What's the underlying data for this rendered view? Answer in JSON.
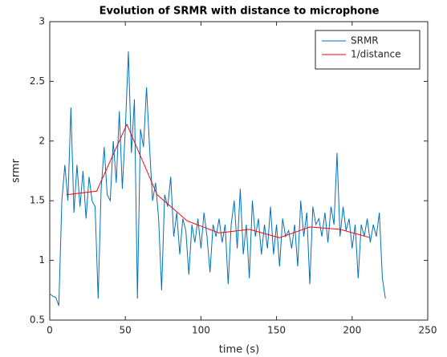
{
  "chart_data": {
    "type": "line",
    "title": "Evolution of SRMR with distance to microphone",
    "xlabel": "time (s)",
    "ylabel": "srmr",
    "xlim": [
      0,
      250
    ],
    "xticks": [
      0,
      50,
      100,
      150,
      200,
      250
    ],
    "ylim": [
      0.5,
      3
    ],
    "yticks": [
      0.5,
      1,
      1.5,
      2,
      2.5,
      3
    ],
    "grid": false,
    "legend": "northeast",
    "series": [
      {
        "name": "SRMR",
        "color": "#0072bd",
        "x": [
          0,
          2,
          4,
          6,
          8,
          10,
          12,
          14,
          16,
          18,
          20,
          22,
          24,
          26,
          28,
          30,
          32,
          34,
          36,
          38,
          40,
          42,
          44,
          46,
          48,
          50,
          52,
          54,
          56,
          58,
          60,
          62,
          64,
          66,
          68,
          70,
          72,
          74,
          76,
          78,
          80,
          82,
          84,
          86,
          88,
          90,
          92,
          94,
          96,
          98,
          100,
          102,
          104,
          106,
          108,
          110,
          112,
          114,
          116,
          118,
          120,
          122,
          124,
          126,
          128,
          130,
          132,
          134,
          136,
          138,
          140,
          142,
          144,
          146,
          148,
          150,
          152,
          154,
          156,
          158,
          160,
          162,
          164,
          166,
          168,
          170,
          172,
          174,
          176,
          178,
          180,
          182,
          184,
          186,
          188,
          190,
          192,
          194,
          196,
          198,
          200,
          202,
          204,
          206,
          208,
          210,
          212,
          214,
          216,
          218,
          220,
          222
        ],
        "values": [
          0.72,
          0.7,
          0.69,
          0.62,
          1.5,
          1.8,
          1.5,
          2.28,
          1.4,
          1.8,
          1.45,
          1.75,
          1.35,
          1.7,
          1.5,
          1.45,
          0.68,
          1.6,
          1.95,
          1.55,
          1.5,
          2.0,
          1.65,
          2.25,
          1.6,
          2.1,
          2.75,
          1.9,
          2.35,
          0.68,
          2.1,
          1.95,
          2.45,
          1.95,
          1.5,
          1.65,
          1.35,
          0.75,
          1.55,
          1.45,
          1.7,
          1.2,
          1.4,
          1.05,
          1.35,
          1.25,
          0.88,
          1.3,
          1.15,
          1.35,
          1.1,
          1.4,
          1.2,
          0.9,
          1.3,
          1.2,
          1.35,
          1.15,
          1.3,
          0.8,
          1.3,
          1.5,
          1.1,
          1.6,
          1.05,
          1.3,
          0.85,
          1.5,
          1.2,
          1.35,
          1.05,
          1.3,
          1.1,
          1.45,
          1.05,
          1.3,
          0.95,
          1.35,
          1.2,
          1.25,
          1.1,
          1.3,
          0.95,
          1.5,
          1.2,
          1.4,
          0.8,
          1.45,
          1.3,
          1.35,
          1.2,
          1.4,
          1.15,
          1.45,
          1.3,
          1.9,
          1.2,
          1.45,
          1.25,
          1.35,
          1.1,
          1.3,
          0.85,
          1.3,
          1.2,
          1.35,
          1.15,
          1.3,
          1.2,
          1.4,
          0.85,
          0.68
        ]
      },
      {
        "name": "1/distance",
        "color": "#ff0000",
        "x": [
          11,
          31,
          51,
          71,
          91,
          112,
          132,
          152,
          172,
          192,
          212
        ],
        "values": [
          1.55,
          1.58,
          2.14,
          1.55,
          1.33,
          1.23,
          1.26,
          1.19,
          1.28,
          1.26,
          1.19
        ]
      }
    ]
  }
}
